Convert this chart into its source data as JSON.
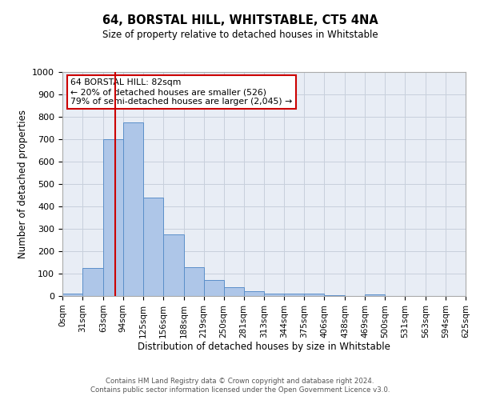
{
  "title": "64, BORSTAL HILL, WHITSTABLE, CT5 4NA",
  "subtitle": "Size of property relative to detached houses in Whitstable",
  "xlabel": "Distribution of detached houses by size in Whitstable",
  "ylabel": "Number of detached properties",
  "bin_edges": [
    0,
    31,
    63,
    94,
    125,
    156,
    188,
    219,
    250,
    281,
    313,
    344,
    375,
    406,
    438,
    469,
    500,
    531,
    563,
    594,
    625
  ],
  "bar_heights": [
    10,
    125,
    700,
    775,
    440,
    275,
    130,
    70,
    38,
    22,
    10,
    12,
    10,
    5,
    0,
    8,
    0,
    0,
    0,
    0
  ],
  "bar_color": "#aec6e8",
  "bar_edge_color": "#5b8fc9",
  "property_size": 82,
  "vline_color": "#cc0000",
  "annotation_text": "64 BORSTAL HILL: 82sqm\n← 20% of detached houses are smaller (526)\n79% of semi-detached houses are larger (2,045) →",
  "annotation_box_color": "#ffffff",
  "annotation_box_edge_color": "#cc0000",
  "ylim": [
    0,
    1000
  ],
  "yticks": [
    0,
    100,
    200,
    300,
    400,
    500,
    600,
    700,
    800,
    900,
    1000
  ],
  "grid_color": "#c8d0dc",
  "bg_color": "#e8edf5",
  "footnote1": "Contains HM Land Registry data © Crown copyright and database right 2024.",
  "footnote2": "Contains public sector information licensed under the Open Government Licence v3.0."
}
